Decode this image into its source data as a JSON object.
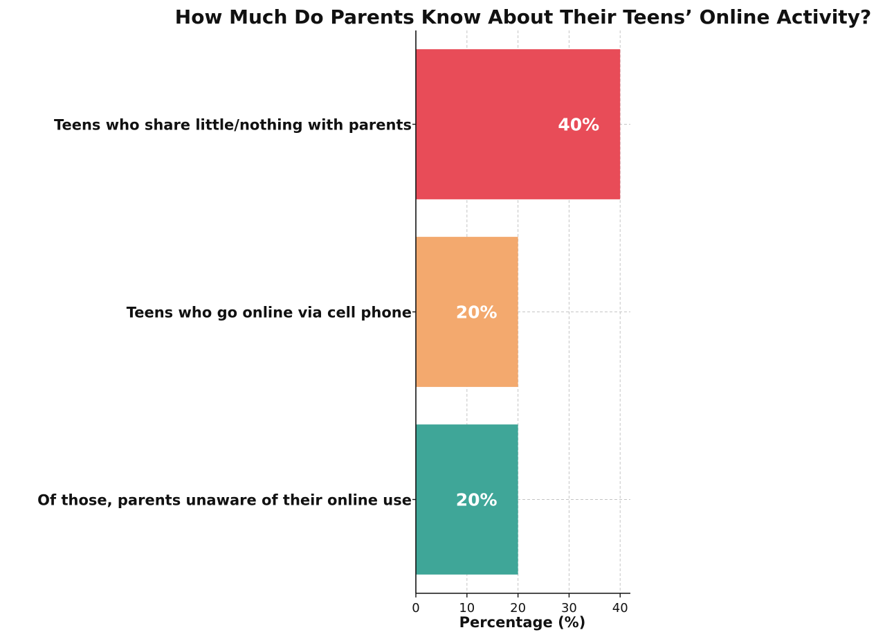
{
  "chart_data": {
    "type": "bar",
    "orientation": "horizontal",
    "title": "How Much Do Parents Know About Their Teens’ Online Activity?",
    "xlabel": "Percentage (%)",
    "ylabel": "",
    "categories": [
      "Teens who share little/nothing with parents",
      "Teens who go online via cell phone",
      "Of those, parents unaware of their online use"
    ],
    "values": [
      40,
      20,
      20
    ],
    "data_labels": [
      "40%",
      "20%",
      "20%"
    ],
    "colors": [
      "#e84c58",
      "#f3a96e",
      "#3fa698"
    ],
    "xlim": [
      0,
      42
    ],
    "xticks": [
      0,
      10,
      20,
      30,
      40
    ],
    "xtick_labels": [
      "0",
      "10",
      "20",
      "30",
      "40"
    ],
    "grid": true,
    "legend": "none"
  }
}
